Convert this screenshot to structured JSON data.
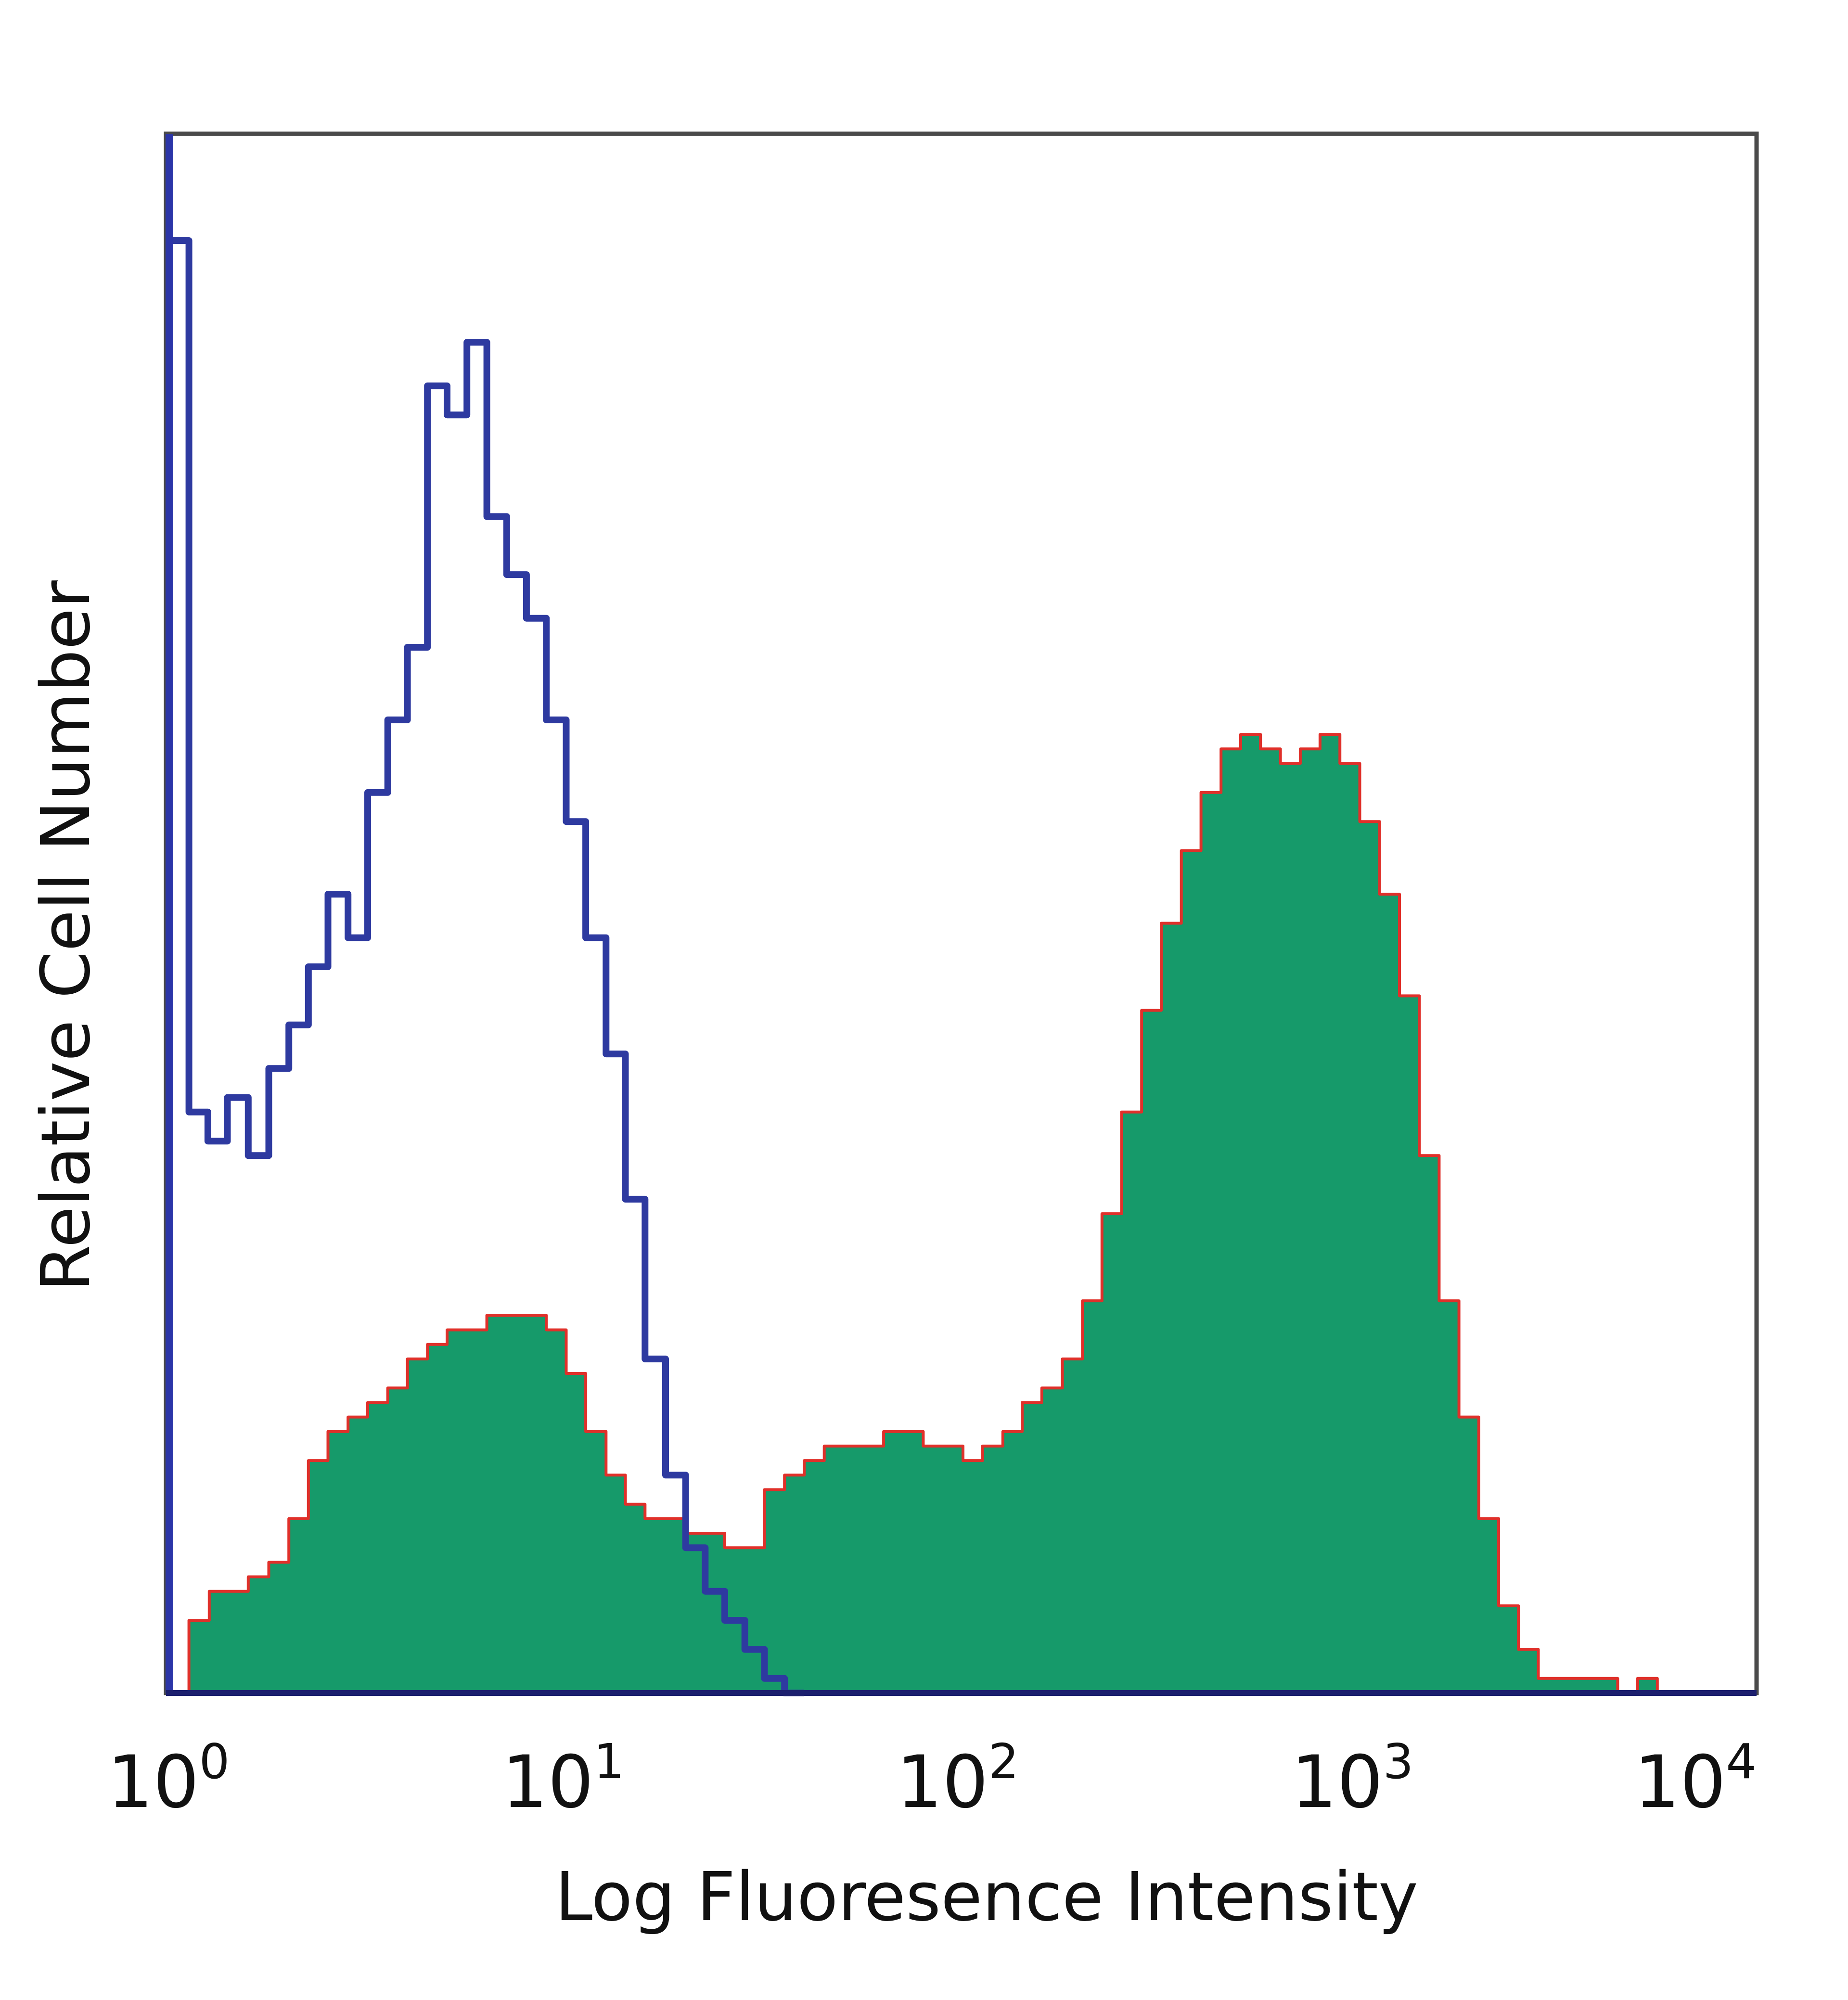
{
  "chart_data": {
    "type": "area",
    "xlabel": "Log Fluoresence Intensity",
    "ylabel": "Relative Cell Number",
    "xscale": "log",
    "xlim": [
      1,
      10000
    ],
    "ylim": [
      0,
      100
    ],
    "x_ticks": [
      {
        "base": "10",
        "exp": "0"
      },
      {
        "base": "10",
        "exp": "1"
      },
      {
        "base": "10",
        "exp": "2"
      },
      {
        "base": "10",
        "exp": "3"
      },
      {
        "base": "10",
        "exp": "4"
      }
    ],
    "grid": false,
    "legend": "none",
    "colors": {
      "isotype": "#2e3aa0",
      "stained_fill": "#169a6a",
      "stained_outline": "#e0302a",
      "axis": "#1c1f6e",
      "frame": "#4a4a4a"
    },
    "series": [
      {
        "style": "line",
        "color": "#2e3aa0",
        "x": [
          1.0,
          1.12,
          1.25,
          1.4,
          1.58,
          1.78,
          2.0,
          2.24,
          2.51,
          2.82,
          3.16,
          3.55,
          3.98,
          4.47,
          5.01,
          5.62,
          6.31,
          7.08,
          7.94,
          8.91,
          10.0,
          11.2,
          12.6,
          14.1,
          15.8,
          17.8,
          20.0,
          22.4,
          25.1,
          28.2,
          31.6,
          35.5,
          39.8
        ],
        "y": [
          100,
          40,
          38,
          41,
          37,
          43,
          46,
          50,
          55,
          52,
          62,
          67,
          72,
          90,
          88,
          93,
          81,
          77,
          74,
          67,
          60,
          52,
          44,
          34,
          23,
          15,
          10,
          7,
          5,
          3,
          1,
          0,
          0
        ]
      },
      {
        "style": "filled",
        "color": "#169a6a",
        "outline": "#e0302a",
        "x": [
          1.0,
          1.12,
          1.26,
          1.41,
          1.58,
          1.78,
          2.0,
          2.24,
          2.51,
          2.82,
          3.16,
          3.55,
          3.98,
          4.47,
          5.01,
          5.62,
          6.31,
          7.08,
          7.94,
          8.91,
          10.0,
          11.2,
          12.6,
          14.1,
          15.8,
          17.8,
          20.0,
          22.4,
          25.1,
          28.2,
          31.6,
          35.5,
          39.8,
          44.7,
          50.1,
          56.2,
          63.1,
          70.8,
          79.4,
          89.1,
          100,
          112,
          126,
          141,
          158,
          178,
          200,
          224,
          251,
          282,
          316,
          355,
          398,
          447,
          501,
          562,
          631,
          708,
          794,
          891,
          1000,
          1122,
          1259,
          1413,
          1585,
          1778,
          1995,
          2239,
          2512,
          2818,
          3162,
          3548,
          3981,
          4467,
          5012,
          5623,
          6310
        ],
        "y": [
          0,
          5,
          7,
          7,
          8,
          9,
          12,
          16,
          18,
          19,
          20,
          21,
          23,
          24,
          25,
          25,
          26,
          26,
          26,
          25,
          22,
          18,
          15,
          13,
          12,
          12,
          11,
          11,
          10,
          10,
          14,
          15,
          16,
          17,
          17,
          17,
          18,
          18,
          17,
          17,
          16,
          17,
          18,
          20,
          21,
          23,
          27,
          33,
          40,
          47,
          53,
          58,
          62,
          65,
          66,
          65,
          64,
          65,
          66,
          64,
          60,
          55,
          48,
          37,
          27,
          19,
          12,
          6,
          3,
          1,
          1,
          1,
          1,
          0,
          1,
          0,
          0
        ]
      }
    ]
  }
}
